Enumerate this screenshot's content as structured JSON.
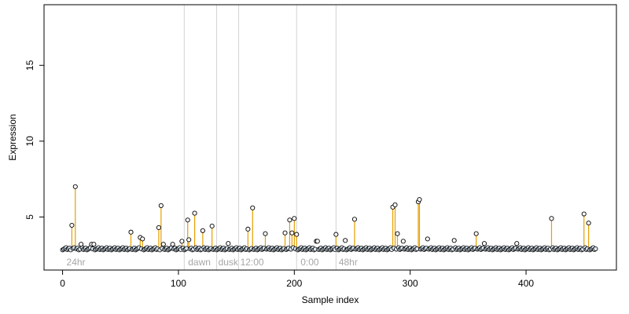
{
  "chart_data": {
    "type": "scatter",
    "xlabel": "Sample index",
    "ylabel": "Expression",
    "xlim": [
      -16,
      478
    ],
    "ylim": [
      1.5,
      19
    ],
    "x_ticks": [
      0,
      100,
      200,
      300,
      400
    ],
    "y_ticks": [
      5,
      10,
      15
    ],
    "grid": false,
    "colors": {
      "axis": "#000000",
      "stem": "#e69f00",
      "point_stroke": "#000000",
      "point_fill": "#ffffff",
      "baseline_point_fill": "#dce8f4",
      "separator": "#d3d3d3",
      "annotation": "#a6a6a6"
    },
    "baseline": 2.9,
    "annotations": [
      {
        "label": "24hr",
        "x": 2
      },
      {
        "label": "dawn",
        "x": 107
      },
      {
        "label": "dusk",
        "x": 133
      },
      {
        "label": "12:00",
        "x": 152
      },
      {
        "label": "0:00",
        "x": 204
      },
      {
        "label": "48hr",
        "x": 237
      }
    ],
    "separators": [
      105,
      133,
      152,
      202,
      236
    ],
    "highlighted_points": [
      {
        "x": 8,
        "y": 4.45
      },
      {
        "x": 11,
        "y": 7.0
      },
      {
        "x": 59,
        "y": 4.0
      },
      {
        "x": 67,
        "y": 3.65
      },
      {
        "x": 69,
        "y": 3.55
      },
      {
        "x": 83,
        "y": 4.3
      },
      {
        "x": 85,
        "y": 5.75
      },
      {
        "x": 87,
        "y": 3.2
      },
      {
        "x": 103,
        "y": 3.4
      },
      {
        "x": 108,
        "y": 4.8
      },
      {
        "x": 109,
        "y": 3.5
      },
      {
        "x": 114,
        "y": 5.25
      },
      {
        "x": 121,
        "y": 4.1
      },
      {
        "x": 129,
        "y": 4.4
      },
      {
        "x": 160,
        "y": 4.2
      },
      {
        "x": 164,
        "y": 5.6
      },
      {
        "x": 175,
        "y": 3.9
      },
      {
        "x": 192,
        "y": 3.95
      },
      {
        "x": 196,
        "y": 4.8
      },
      {
        "x": 198,
        "y": 3.95
      },
      {
        "x": 200,
        "y": 4.9
      },
      {
        "x": 202,
        "y": 3.85
      },
      {
        "x": 236,
        "y": 3.85
      },
      {
        "x": 252,
        "y": 4.85
      },
      {
        "x": 285,
        "y": 5.65
      },
      {
        "x": 287,
        "y": 5.8
      },
      {
        "x": 289,
        "y": 3.9
      },
      {
        "x": 307,
        "y": 6.0
      },
      {
        "x": 308,
        "y": 6.15
      },
      {
        "x": 357,
        "y": 3.9
      },
      {
        "x": 422,
        "y": 4.9
      },
      {
        "x": 450,
        "y": 5.2
      },
      {
        "x": 454,
        "y": 4.6
      }
    ],
    "other_points": [
      {
        "x": 16,
        "y": 3.2
      },
      {
        "x": 25,
        "y": 3.2
      },
      {
        "x": 27,
        "y": 3.2
      },
      {
        "x": 95,
        "y": 3.2
      },
      {
        "x": 143,
        "y": 3.25
      },
      {
        "x": 219,
        "y": 3.4
      },
      {
        "x": 220,
        "y": 3.4
      },
      {
        "x": 244,
        "y": 3.45
      },
      {
        "x": 294,
        "y": 3.4
      },
      {
        "x": 315,
        "y": 3.55
      },
      {
        "x": 338,
        "y": 3.45
      },
      {
        "x": 364,
        "y": 3.25
      },
      {
        "x": 392,
        "y": 3.25
      }
    ],
    "baseline_series": {
      "x_start": 0,
      "x_end": 460
    }
  }
}
